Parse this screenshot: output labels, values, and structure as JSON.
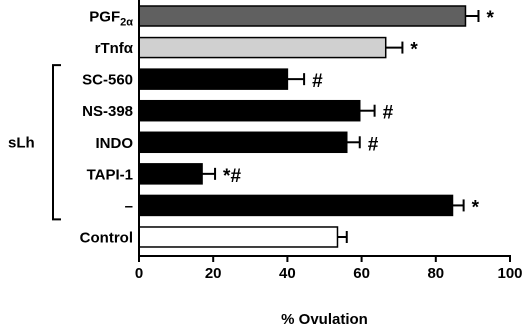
{
  "chart_data": {
    "type": "bar",
    "orientation": "horizontal",
    "xlabel": "% Ovulation",
    "xlim": [
      0,
      100
    ],
    "xticks": [
      0,
      20,
      40,
      60,
      80,
      100
    ],
    "group_label": "sLh",
    "group_members": [
      "SC-560",
      "NS-398",
      "INDO",
      "TAPI-1",
      "–"
    ],
    "categories": [
      {
        "label_main": "PGF",
        "label_sub": "2α",
        "value": 88,
        "error": 3.5,
        "fill": "#606060",
        "marker": "*"
      },
      {
        "label_main": "rTnfα",
        "label_sub": "",
        "value": 66.5,
        "error": 4.5,
        "fill": "#d0d0d0",
        "marker": "*"
      },
      {
        "label_main": "SC-560",
        "label_sub": "",
        "value": 40,
        "error": 4.5,
        "fill": "#000000",
        "marker": "#"
      },
      {
        "label_main": "NS-398",
        "label_sub": "",
        "value": 59.5,
        "error": 4,
        "fill": "#000000",
        "marker": "#"
      },
      {
        "label_main": "INDO",
        "label_sub": "",
        "value": 56,
        "error": 3.5,
        "fill": "#000000",
        "marker": "#"
      },
      {
        "label_main": "TAPI-1",
        "label_sub": "",
        "value": 17,
        "error": 3.5,
        "fill": "#000000",
        "marker": "*#"
      },
      {
        "label_main": "–",
        "label_sub": "",
        "value": 84.5,
        "error": 3,
        "fill": "#000000",
        "marker": "*"
      },
      {
        "label_main": "Control",
        "label_sub": "",
        "value": 53.5,
        "error": 2.5,
        "fill": "#ffffff",
        "marker": ""
      }
    ]
  }
}
